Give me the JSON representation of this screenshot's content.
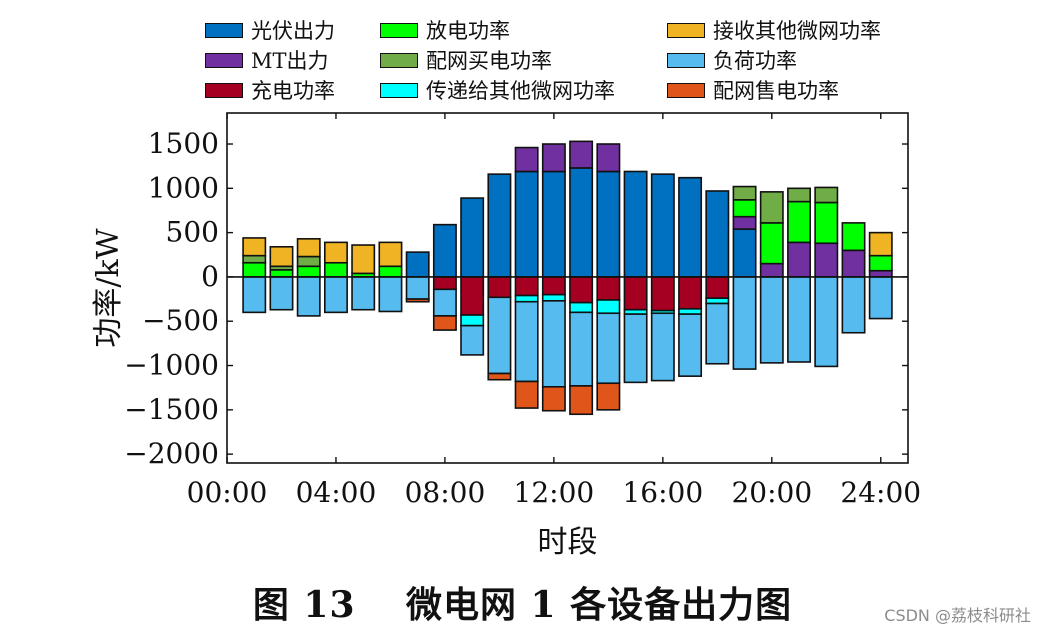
{
  "chart_data": {
    "type": "bar",
    "stacked": true,
    "ylabel": "功率/kW",
    "xlabel": "时段",
    "ylim": [
      -2100,
      1850
    ],
    "xlim": [
      0,
      25
    ],
    "yticks": [
      -2000,
      -1500,
      -1000,
      -500,
      0,
      500,
      1000,
      1500
    ],
    "xticks": [
      {
        "x": 0,
        "label": "00:00"
      },
      {
        "x": 4,
        "label": "04:00"
      },
      {
        "x": 8,
        "label": "08:00"
      },
      {
        "x": 12,
        "label": "12:00"
      },
      {
        "x": 16,
        "label": "16:00"
      },
      {
        "x": 20,
        "label": "20:00"
      },
      {
        "x": 24,
        "label": "24:00"
      }
    ],
    "hours": [
      1,
      2,
      3,
      4,
      5,
      6,
      7,
      8,
      9,
      10,
      11,
      12,
      13,
      14,
      15,
      16,
      17,
      18,
      19,
      20,
      21,
      22,
      23,
      24
    ],
    "legend_placement": "top",
    "series": [
      {
        "name": "光伏出力",
        "color": "#0070c0",
        "values": [
          0,
          0,
          0,
          0,
          0,
          0,
          280,
          590,
          890,
          1160,
          1190,
          1190,
          1230,
          1190,
          1190,
          1160,
          1120,
          970,
          540,
          0,
          0,
          0,
          0,
          0
        ]
      },
      {
        "name": "MT出力",
        "color": "#7030a0",
        "values": [
          0,
          0,
          0,
          0,
          0,
          0,
          0,
          0,
          0,
          0,
          270,
          310,
          300,
          310,
          0,
          0,
          0,
          0,
          140,
          150,
          390,
          380,
          300,
          70
        ]
      },
      {
        "name": "充电功率",
        "color": "#a50021",
        "values": [
          0,
          0,
          0,
          0,
          0,
          0,
          0,
          -140,
          -430,
          -230,
          -210,
          -200,
          -290,
          -260,
          -370,
          -380,
          -360,
          -240,
          0,
          0,
          0,
          0,
          0,
          0
        ]
      },
      {
        "name": "放电功率",
        "color": "#00ff00",
        "values": [
          160,
          80,
          120,
          160,
          40,
          120,
          0,
          0,
          0,
          0,
          0,
          0,
          0,
          0,
          0,
          0,
          0,
          0,
          190,
          460,
          460,
          460,
          310,
          170
        ]
      },
      {
        "name": "配网买电功率",
        "color": "#70ad47",
        "values": [
          80,
          40,
          110,
          0,
          0,
          0,
          0,
          0,
          0,
          0,
          0,
          0,
          0,
          0,
          0,
          0,
          0,
          0,
          150,
          350,
          150,
          170,
          0,
          0
        ]
      },
      {
        "name": "传递给其他微网功率",
        "color": "#00ffff",
        "values": [
          0,
          0,
          0,
          0,
          0,
          0,
          0,
          0,
          -120,
          0,
          -70,
          -70,
          -110,
          -150,
          -50,
          -30,
          -60,
          -60,
          0,
          0,
          0,
          0,
          0,
          0
        ]
      },
      {
        "name": "接收其他微网功率",
        "color": "#f0b323",
        "values": [
          200,
          220,
          200,
          230,
          320,
          270,
          0,
          0,
          0,
          0,
          0,
          0,
          0,
          0,
          0,
          0,
          0,
          0,
          0,
          0,
          0,
          0,
          0,
          260
        ]
      },
      {
        "name": "负荷功率",
        "color": "#56bbef",
        "values": [
          -400,
          -370,
          -440,
          -400,
          -370,
          -390,
          -250,
          -300,
          -330,
          -860,
          -900,
          -970,
          -830,
          -790,
          -770,
          -760,
          -700,
          -680,
          -1040,
          -970,
          -960,
          -1010,
          -630,
          -470
        ]
      },
      {
        "name": "配网售电功率",
        "color": "#e0561a",
        "values": [
          0,
          0,
          0,
          0,
          0,
          0,
          -30,
          -160,
          0,
          -70,
          -300,
          -270,
          -320,
          -300,
          0,
          0,
          0,
          0,
          0,
          0,
          0,
          0,
          0,
          0
        ]
      }
    ]
  },
  "caption": "图 13　 微电网 1 各设备出力图",
  "watermark": "CSDN @荔枝科研社"
}
